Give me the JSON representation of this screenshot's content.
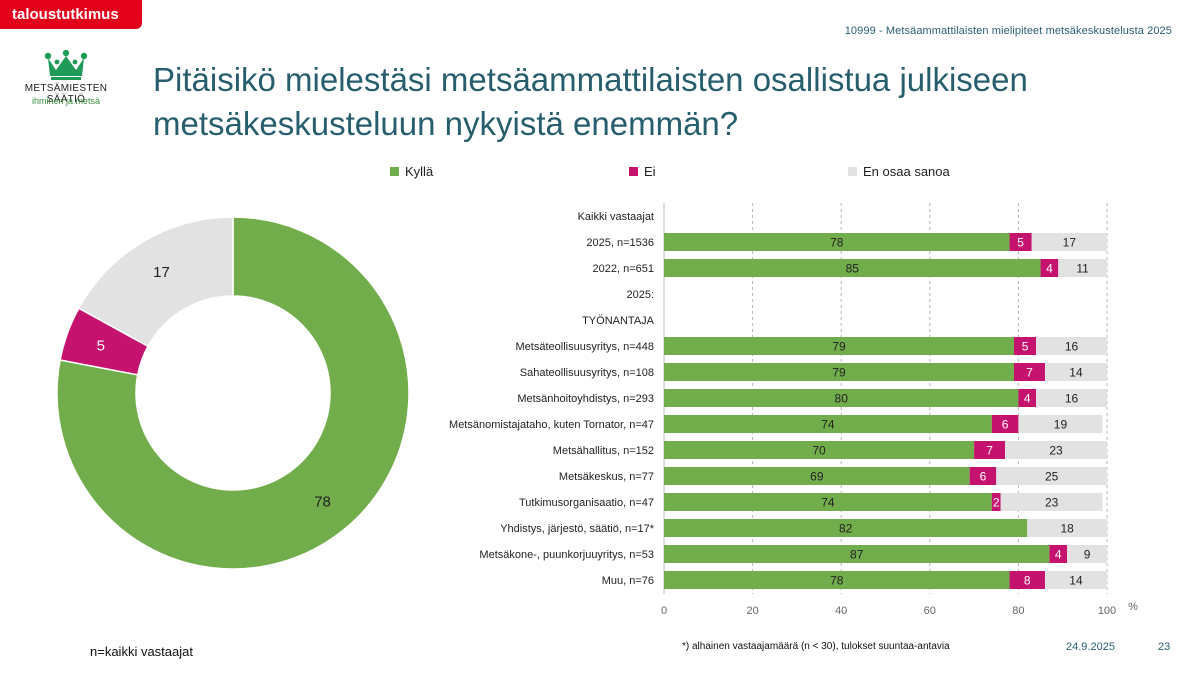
{
  "header": {
    "tag": "taloustutkimus",
    "reference": "10999 - Metsäammattilaisten mielipiteet metsäkeskustelusta 2025"
  },
  "logo": {
    "name": "METSÄMIESTEN SÄÄTIÖ",
    "tagline": "ihminen ja metsä",
    "icon": "crown-icon"
  },
  "title": "Pitäisikö mielestäsi metsäammattilaisten osallistua julkiseen metsäkeskusteluun nykyistä enemmän?",
  "colors": {
    "kylla": "#72ad4c",
    "ei": "#c4126e",
    "eos": "#e2e2e2",
    "accent": "#e3001b",
    "title": "#275e6e"
  },
  "chart_data": [
    {
      "type": "pie",
      "donut": true,
      "labels": [
        "Kyllä",
        "Ei",
        "En osaa sanoa"
      ],
      "values": [
        78,
        5,
        17
      ]
    },
    {
      "type": "bar",
      "orientation": "horizontal",
      "stacked": true,
      "legend": [
        "Kyllä",
        "Ei",
        "En osaa sanoa"
      ],
      "legend_position": "top",
      "grid": true,
      "xlim": [
        0,
        100
      ],
      "xticks": [
        0,
        20,
        40,
        60,
        80,
        100
      ],
      "xunit": "%",
      "rows": [
        {
          "label": "Kaikki vastaajat",
          "values": null
        },
        {
          "label": "2025, n=1536",
          "values": [
            78,
            5,
            17
          ]
        },
        {
          "label": "2022, n=651",
          "values": [
            85,
            4,
            11
          ]
        },
        {
          "label": "2025:",
          "values": null
        },
        {
          "label": "TYÖNANTAJA",
          "values": null
        },
        {
          "label": "Metsäteollisuusyritys, n=448",
          "values": [
            79,
            5,
            16
          ]
        },
        {
          "label": "Sahateollisuusyritys, n=108",
          "values": [
            79,
            7,
            14
          ]
        },
        {
          "label": "Metsänhoitoyhdistys, n=293",
          "values": [
            80,
            4,
            16
          ]
        },
        {
          "label": "Metsänomistajataho, kuten Tornator, n=47",
          "values": [
            74,
            6,
            19
          ]
        },
        {
          "label": "Metsähallitus, n=152",
          "values": [
            70,
            7,
            23
          ]
        },
        {
          "label": "Metsäkeskus, n=77",
          "values": [
            69,
            6,
            25
          ]
        },
        {
          "label": "Tutkimusorganisaatio, n=47",
          "values": [
            74,
            2,
            23
          ]
        },
        {
          "label": "Yhdistys, järjestö, säätiö, n=17*",
          "values": [
            82,
            0,
            18
          ]
        },
        {
          "label": "Metsäkone-, puunkorjuuyritys, n=53",
          "values": [
            87,
            4,
            9
          ]
        },
        {
          "label": "Muu, n=76",
          "values": [
            78,
            8,
            14
          ]
        }
      ]
    }
  ],
  "footer": {
    "n_note": "n=kaikki vastaajat",
    "low_n_note": "*) alhainen vastaajamäärä (n < 30), tulokset suuntaa-antavia",
    "date": "24.9.2025",
    "page": "23"
  }
}
